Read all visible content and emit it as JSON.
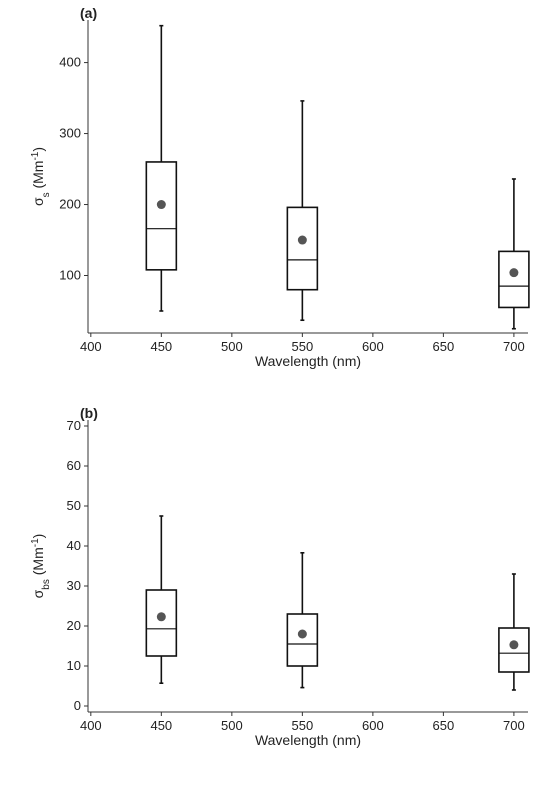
{
  "chart_data": [
    {
      "type": "box",
      "panel_label": "(a)",
      "xlabel": "Wavelength (nm)",
      "ylabel_parts": [
        "σ",
        "s",
        " (Mm",
        "-1",
        ")"
      ],
      "xlim": [
        398,
        710
      ],
      "xticks": [
        400,
        450,
        500,
        550,
        600,
        650,
        700
      ],
      "ylim": [
        19,
        460
      ],
      "yticks": [
        100,
        200,
        300,
        400
      ],
      "x": [
        450,
        550,
        700
      ],
      "whisker_low": [
        50,
        37,
        25
      ],
      "q1": [
        108,
        80,
        55
      ],
      "median": [
        166,
        122,
        85
      ],
      "q3": [
        260,
        196,
        134
      ],
      "whisker_high": [
        452,
        346,
        236
      ],
      "mean": [
        200,
        150,
        104
      ],
      "color": "#111111",
      "mean_color": "#555555"
    },
    {
      "type": "box",
      "panel_label": "(b)",
      "xlabel": "Wavelength (nm)",
      "ylabel_parts": [
        "σ",
        "bs",
        " (Mm",
        "-1",
        ")"
      ],
      "xlim": [
        398,
        710
      ],
      "xticks": [
        400,
        450,
        500,
        550,
        600,
        650,
        700
      ],
      "ylim": [
        -1.5,
        71.5
      ],
      "yticks": [
        0,
        10,
        20,
        30,
        40,
        50,
        60,
        70
      ],
      "x": [
        450,
        550,
        700
      ],
      "whisker_low": [
        5.7,
        4.6,
        4
      ],
      "q1": [
        12.5,
        10,
        8.5
      ],
      "median": [
        19.3,
        15.5,
        13.2
      ],
      "q3": [
        29,
        23,
        19.5
      ],
      "whisker_high": [
        47.5,
        38.3,
        33
      ],
      "mean": [
        22.3,
        18,
        15.3
      ],
      "color": "#111111",
      "mean_color": "#555555"
    }
  ]
}
